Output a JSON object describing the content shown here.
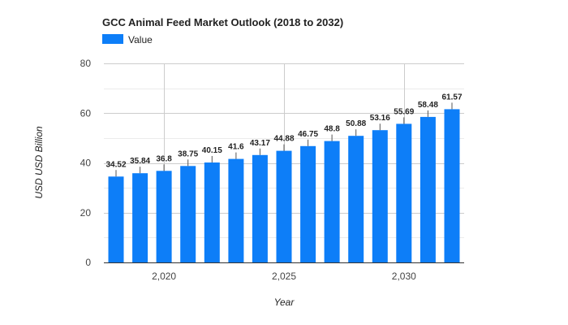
{
  "chart_data": {
    "type": "bar",
    "title": "GCC Animal Feed Market Outlook (2018 to 2032)",
    "xlabel": "Year",
    "ylabel": "USD USD Billion",
    "ylim": [
      0,
      80
    ],
    "yticks": [
      "0",
      "20",
      "40",
      "60",
      "80"
    ],
    "x_tick_labels": [
      "2,020",
      "2,025",
      "2,030"
    ],
    "x_tick_values": [
      2020,
      2025,
      2030
    ],
    "grid": true,
    "legend_position": "top-left",
    "color": "#0d7ef8",
    "categories": [
      2018,
      2019,
      2020,
      2021,
      2022,
      2023,
      2024,
      2025,
      2026,
      2027,
      2028,
      2029,
      2030,
      2031,
      2032
    ],
    "series": [
      {
        "name": "Value",
        "values": [
          34.52,
          35.84,
          36.8,
          38.75,
          40.15,
          41.6,
          43.17,
          44.88,
          46.75,
          48.8,
          50.88,
          53.16,
          55.69,
          58.48,
          61.57
        ],
        "labels": [
          "34.52",
          "35.84",
          "36.8",
          "38.75",
          "40.15",
          "41.6",
          "43.17",
          "44.88",
          "46.75",
          "48.8",
          "50.88",
          "53.16",
          "55.69",
          "58.48",
          "61.57"
        ]
      }
    ]
  }
}
